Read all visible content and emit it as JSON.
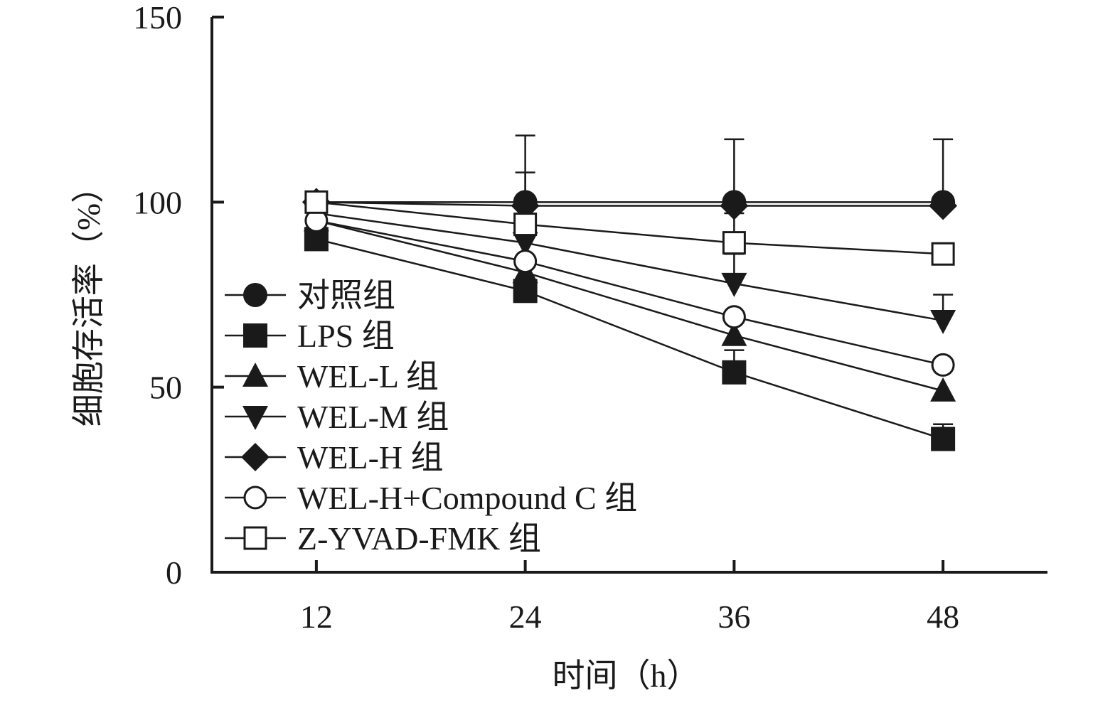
{
  "chart_data": {
    "type": "line",
    "title": "",
    "xlabel": "时间（h）",
    "ylabel": "细胞存活率（%）",
    "x": [
      12,
      24,
      36,
      48
    ],
    "xlim": [
      6,
      54
    ],
    "ylim": [
      0,
      150
    ],
    "y_ticks": [
      0,
      50,
      100,
      150
    ],
    "grid": false,
    "legend_position": "left-middle",
    "series": [
      {
        "name": "对照组",
        "marker": "filled-circle",
        "values": [
          100,
          100,
          100,
          100
        ],
        "err": [
          0,
          18,
          17,
          17
        ]
      },
      {
        "name": "LPS 组",
        "marker": "filled-square",
        "values": [
          90,
          76,
          54,
          36
        ],
        "err": [
          0,
          0,
          6,
          4
        ]
      },
      {
        "name": "WEL-L 组",
        "marker": "filled-triangle-up",
        "values": [
          95,
          81,
          64,
          49
        ],
        "err": [
          0,
          0,
          0,
          0
        ]
      },
      {
        "name": "WEL-M 组",
        "marker": "filled-triangle-down",
        "values": [
          97,
          89,
          78,
          68
        ],
        "err": [
          0,
          0,
          8,
          7
        ]
      },
      {
        "name": "WEL-H 组",
        "marker": "filled-diamond",
        "values": [
          100,
          99,
          99,
          99
        ],
        "err": [
          0,
          0,
          0,
          0
        ]
      },
      {
        "name": "WEL-H+Compound C 组",
        "marker": "open-circle",
        "values": [
          95,
          84,
          69,
          56
        ],
        "err": [
          0,
          0,
          0,
          0
        ]
      },
      {
        "name": "Z-YVAD-FMK 组",
        "marker": "open-square",
        "values": [
          100,
          94,
          89,
          86
        ],
        "err": [
          0,
          14,
          8,
          0
        ]
      }
    ]
  },
  "colors": {
    "ink": "#1a1a1a",
    "background": "#ffffff"
  }
}
